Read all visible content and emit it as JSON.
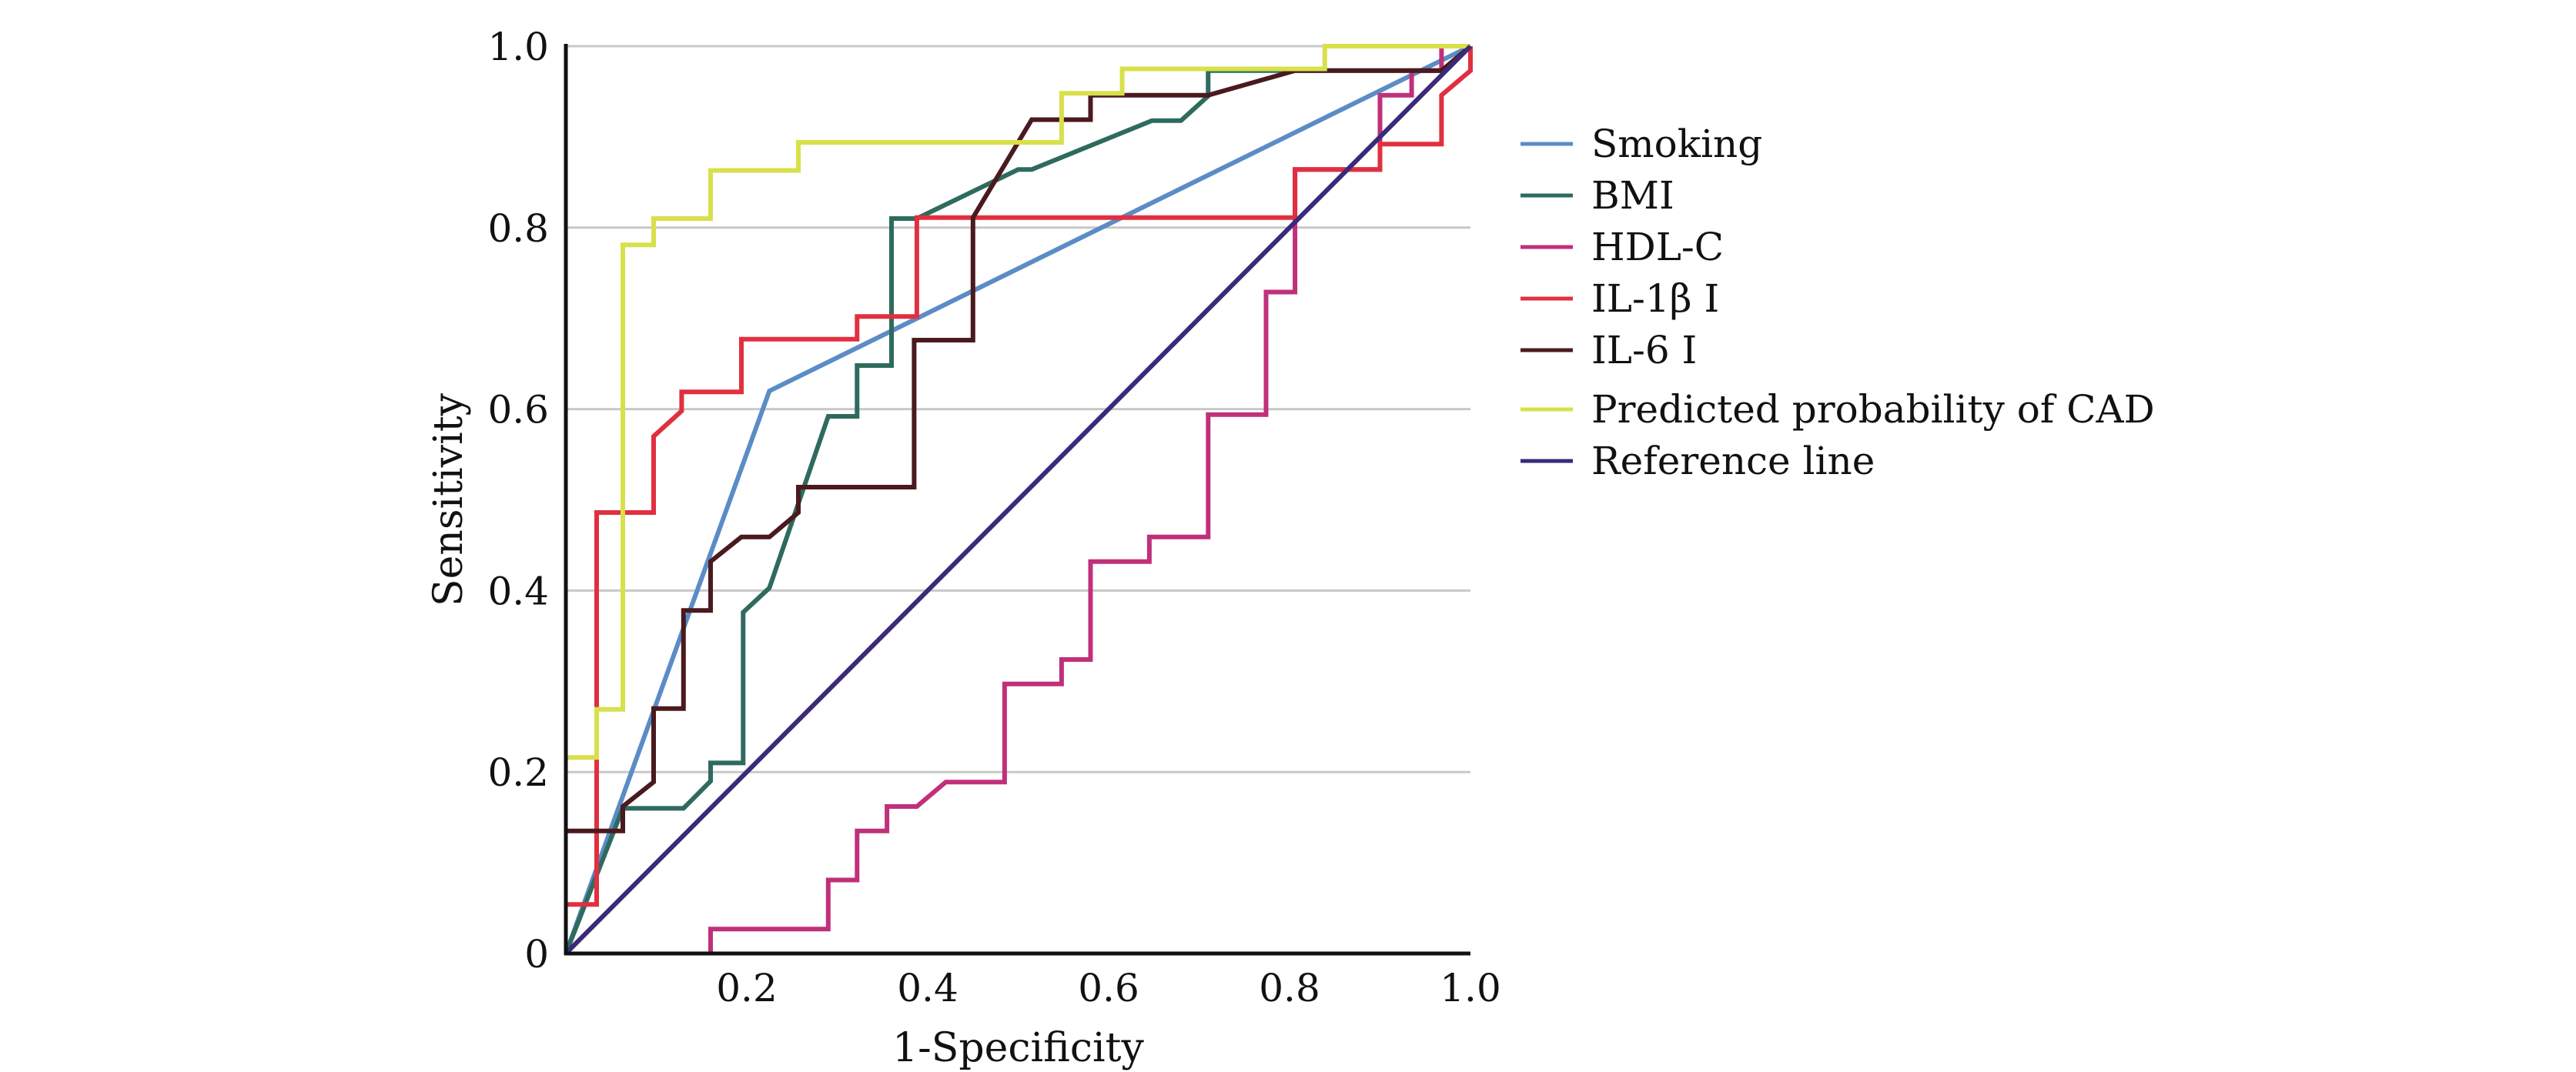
{
  "chart_data": {
    "type": "line",
    "title": "",
    "xlabel": "1-Specificity",
    "ylabel": "Sensitivity",
    "xlim": [
      0,
      1
    ],
    "ylim": [
      0,
      1
    ],
    "grid": "horizontal",
    "legend_position": "right",
    "x_ticks": [
      {
        "value": 0.2,
        "label": "0.2"
      },
      {
        "value": 0.4,
        "label": "0.4"
      },
      {
        "value": 0.6,
        "label": "0.6"
      },
      {
        "value": 0.8,
        "label": "0.8"
      },
      {
        "value": 1.0,
        "label": "1.0"
      }
    ],
    "y_ticks": [
      {
        "value": 0,
        "label": "0"
      },
      {
        "value": 0.2,
        "label": "0.2"
      },
      {
        "value": 0.4,
        "label": "0.4"
      },
      {
        "value": 0.6,
        "label": "0.6"
      },
      {
        "value": 0.8,
        "label": "0.8"
      },
      {
        "value": 1.0,
        "label": "1.0"
      }
    ],
    "series": [
      {
        "name": "Smoking",
        "color": "#5b8cc6",
        "points": [
          [
            0,
            0
          ],
          [
            0.225,
            0.62
          ],
          [
            1,
            1
          ]
        ]
      },
      {
        "name": "BMI",
        "color": "#2e6b5e",
        "points": [
          [
            0,
            0
          ],
          [
            0.063,
            0.16
          ],
          [
            0.13,
            0.16
          ],
          [
            0.16,
            0.19
          ],
          [
            0.16,
            0.21
          ],
          [
            0.196,
            0.21
          ],
          [
            0.196,
            0.376
          ],
          [
            0.225,
            0.403
          ],
          [
            0.29,
            0.592
          ],
          [
            0.322,
            0.592
          ],
          [
            0.322,
            0.648
          ],
          [
            0.36,
            0.648
          ],
          [
            0.36,
            0.81
          ],
          [
            0.388,
            0.81
          ],
          [
            0.5,
            0.864
          ],
          [
            0.515,
            0.864
          ],
          [
            0.648,
            0.918
          ],
          [
            0.68,
            0.918
          ],
          [
            0.71,
            0.945
          ],
          [
            0.71,
            0.973
          ],
          [
            0.97,
            0.973
          ],
          [
            1,
            1
          ]
        ]
      },
      {
        "name": "HDL-C",
        "color": "#c0307a",
        "points": [
          [
            0.16,
            0
          ],
          [
            0.16,
            0.027
          ],
          [
            0.29,
            0.027
          ],
          [
            0.29,
            0.081
          ],
          [
            0.322,
            0.081
          ],
          [
            0.322,
            0.135
          ],
          [
            0.355,
            0.135
          ],
          [
            0.355,
            0.162
          ],
          [
            0.388,
            0.162
          ],
          [
            0.42,
            0.189
          ],
          [
            0.485,
            0.189
          ],
          [
            0.485,
            0.297
          ],
          [
            0.548,
            0.297
          ],
          [
            0.548,
            0.324
          ],
          [
            0.58,
            0.324
          ],
          [
            0.58,
            0.432
          ],
          [
            0.645,
            0.432
          ],
          [
            0.645,
            0.459
          ],
          [
            0.71,
            0.459
          ],
          [
            0.71,
            0.594
          ],
          [
            0.774,
            0.594
          ],
          [
            0.774,
            0.729
          ],
          [
            0.806,
            0.729
          ],
          [
            0.806,
            0.864
          ],
          [
            0.9,
            0.864
          ],
          [
            0.9,
            0.946
          ],
          [
            0.935,
            0.946
          ],
          [
            0.935,
            0.973
          ],
          [
            0.968,
            0.973
          ],
          [
            0.968,
            1.0
          ],
          [
            1,
            1
          ]
        ]
      },
      {
        "name": "IL-1β I",
        "color": "#e03040",
        "points": [
          [
            0,
            0.054
          ],
          [
            0.034,
            0.054
          ],
          [
            0.034,
            0.486
          ],
          [
            0.097,
            0.486
          ],
          [
            0.097,
            0.57
          ],
          [
            0.128,
            0.598
          ],
          [
            0.128,
            0.619
          ],
          [
            0.194,
            0.619
          ],
          [
            0.194,
            0.677
          ],
          [
            0.322,
            0.677
          ],
          [
            0.322,
            0.702
          ],
          [
            0.388,
            0.702
          ],
          [
            0.388,
            0.811
          ],
          [
            0.806,
            0.811
          ],
          [
            0.806,
            0.864
          ],
          [
            0.9,
            0.864
          ],
          [
            0.9,
            0.892
          ],
          [
            0.968,
            0.892
          ],
          [
            0.968,
            0.946
          ],
          [
            1,
            0.973
          ],
          [
            1,
            1
          ]
        ]
      },
      {
        "name": "IL-6 I",
        "color": "#4a1a1e",
        "points": [
          [
            0,
            0.135
          ],
          [
            0.063,
            0.135
          ],
          [
            0.063,
            0.162
          ],
          [
            0.097,
            0.189
          ],
          [
            0.097,
            0.27
          ],
          [
            0.13,
            0.27
          ],
          [
            0.13,
            0.378
          ],
          [
            0.16,
            0.378
          ],
          [
            0.16,
            0.432
          ],
          [
            0.194,
            0.459
          ],
          [
            0.225,
            0.459
          ],
          [
            0.257,
            0.486
          ],
          [
            0.257,
            0.514
          ],
          [
            0.385,
            0.514
          ],
          [
            0.385,
            0.676
          ],
          [
            0.45,
            0.676
          ],
          [
            0.45,
            0.811
          ],
          [
            0.515,
            0.919
          ],
          [
            0.58,
            0.919
          ],
          [
            0.58,
            0.946
          ],
          [
            0.71,
            0.946
          ],
          [
            0.806,
            0.973
          ],
          [
            0.968,
            0.973
          ],
          [
            1,
            1
          ]
        ]
      },
      {
        "name": "Predicted probability of CAD",
        "color": "#d8e04a",
        "points": [
          [
            0,
            0.216
          ],
          [
            0.034,
            0.216
          ],
          [
            0.034,
            0.269
          ],
          [
            0.063,
            0.269
          ],
          [
            0.063,
            0.781
          ],
          [
            0.097,
            0.781
          ],
          [
            0.097,
            0.81
          ],
          [
            0.16,
            0.81
          ],
          [
            0.16,
            0.863
          ],
          [
            0.257,
            0.863
          ],
          [
            0.257,
            0.894
          ],
          [
            0.548,
            0.894
          ],
          [
            0.548,
            0.948
          ],
          [
            0.615,
            0.948
          ],
          [
            0.615,
            0.975
          ],
          [
            0.839,
            0.975
          ],
          [
            0.839,
            1.0
          ],
          [
            1,
            1
          ]
        ]
      },
      {
        "name": "Reference line",
        "color": "#3b2a7a",
        "points": [
          [
            0,
            0
          ],
          [
            1,
            1
          ]
        ]
      }
    ]
  }
}
